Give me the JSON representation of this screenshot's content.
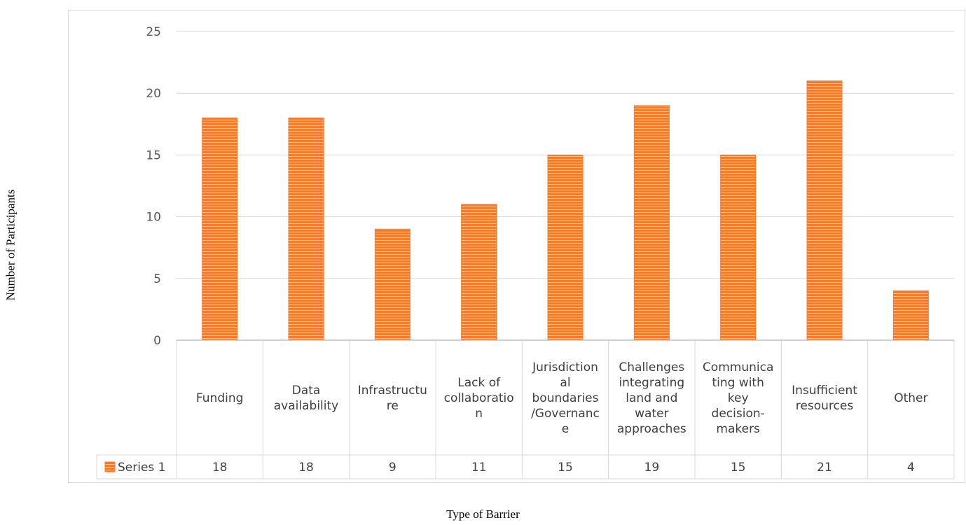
{
  "chart_data": {
    "type": "bar",
    "categories": [
      [
        "Funding"
      ],
      [
        "Data",
        "availability"
      ],
      [
        "Infrastructu",
        "re"
      ],
      [
        "Lack of",
        "collaboratio",
        "n"
      ],
      [
        "Jurisdiction",
        "al",
        "boundaries",
        "/Governanc",
        "e"
      ],
      [
        "Challenges",
        "integrating",
        "land and",
        "water",
        "approaches"
      ],
      [
        "Communica",
        "ting with",
        "key",
        "decision-",
        "makers"
      ],
      [
        "Insufficient",
        "resources"
      ],
      [
        "Other"
      ]
    ],
    "series": [
      {
        "name": "Series 1",
        "values": [
          18,
          18,
          9,
          11,
          15,
          19,
          15,
          21,
          4
        ]
      }
    ],
    "xlabel": "Type of Barrier",
    "ylabel": "Number of Participants",
    "ylim": [
      0,
      25
    ],
    "yticks": [
      "0",
      "5",
      "10",
      "15",
      "20",
      "25"
    ],
    "grid": true,
    "data_table": true,
    "colors": {
      "bar": "#ed7d31",
      "stripe": "#ffffff",
      "grid": "#d9d9d9",
      "table_border": "#d9d9d9"
    }
  }
}
